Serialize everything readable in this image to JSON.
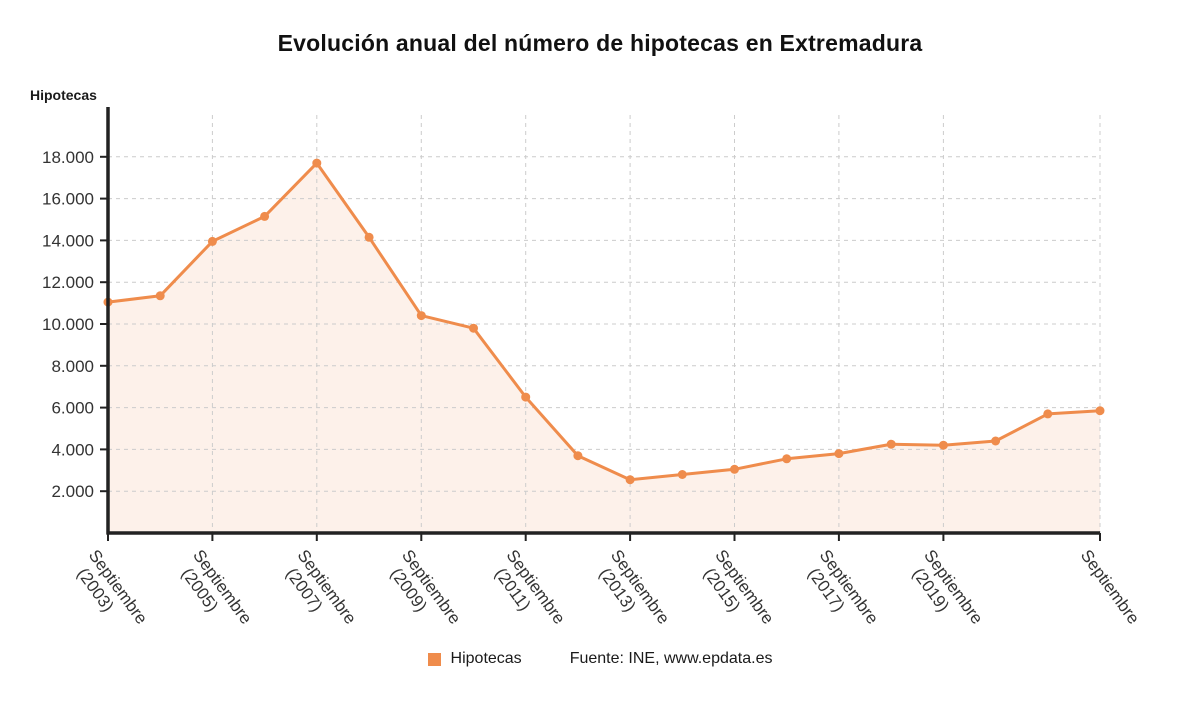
{
  "title": "Evolución anual del número de hipotecas en Extremadura",
  "colors": {
    "line": "#ef8c4c",
    "marker": "#ef8c4c",
    "area_fill": "rgba(251,227,213,0.5)",
    "grid": "#cccccc",
    "axis": "#222222",
    "tick_text": "#333333"
  },
  "chart_data": {
    "type": "line",
    "title": "Evolución anual del número de hipotecas en Extremadura",
    "xlabel": "",
    "ylabel": "Hipotecas",
    "ylim": [
      0,
      20000
    ],
    "grid": true,
    "legend_position": "bottom",
    "series": [
      {
        "name": "Hipotecas",
        "values": [
          11050,
          11350,
          13950,
          15150,
          17700,
          14150,
          10400,
          9800,
          6500,
          3700,
          2550,
          2800,
          3050,
          3550,
          3800,
          4250,
          4200,
          4400,
          5700,
          5850
        ]
      }
    ],
    "x_tick_labels": [
      {
        "index": 0,
        "line1": "Septiembre",
        "line2": "(2003)"
      },
      {
        "index": 2,
        "line1": "Septiembre",
        "line2": "(2005)"
      },
      {
        "index": 4,
        "line1": "Septiembre",
        "line2": "(2007)"
      },
      {
        "index": 6,
        "line1": "Septiembre",
        "line2": "(2009)"
      },
      {
        "index": 8,
        "line1": "Septiembre",
        "line2": "(2011)"
      },
      {
        "index": 10,
        "line1": "Septiembre",
        "line2": "(2013)"
      },
      {
        "index": 12,
        "line1": "Septiembre",
        "line2": "(2015)"
      },
      {
        "index": 14,
        "line1": "Septiembre",
        "line2": "(2017)"
      },
      {
        "index": 16,
        "line1": "Septiembre",
        "line2": "(2019)"
      },
      {
        "index": 19,
        "line1": "Septiembre",
        "line2": ""
      }
    ],
    "y_ticks": [
      2000,
      4000,
      6000,
      8000,
      10000,
      12000,
      14000,
      16000,
      18000
    ],
    "y_tick_labels": [
      "2.000",
      "4.000",
      "6.000",
      "8.000",
      "10.000",
      "12.000",
      "14.000",
      "16.000",
      "18.000"
    ]
  },
  "legend": {
    "label": "Hipotecas"
  },
  "source": "Fuente: INE, www.epdata.es"
}
